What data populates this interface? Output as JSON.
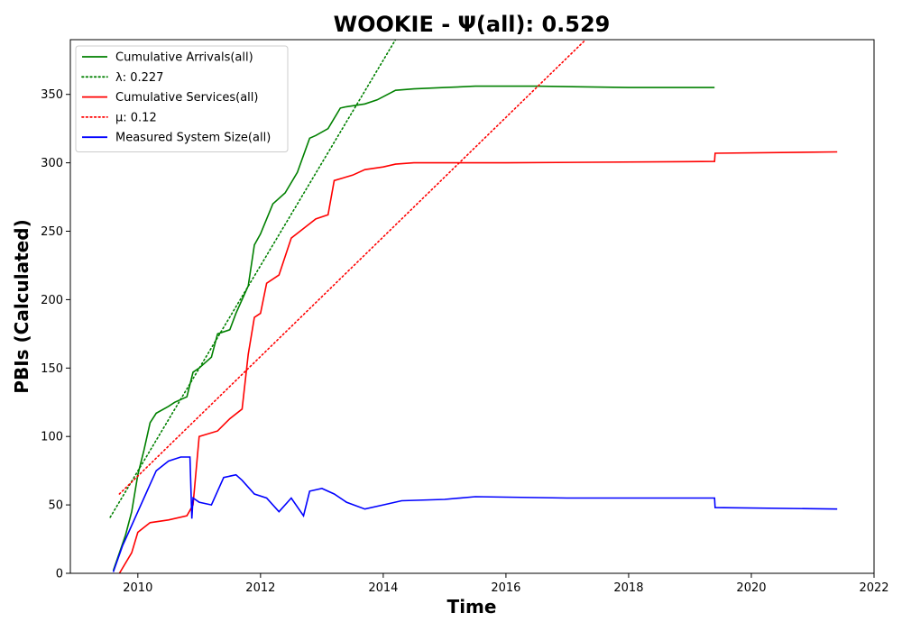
{
  "chart_data": {
    "type": "line",
    "title": "WOOKIE -  Ψ(all): 0.529",
    "xlabel": "Time",
    "ylabel": "PBIs (Calculated)",
    "xlim": [
      2008.9,
      2022.0
    ],
    "ylim": [
      0,
      390
    ],
    "x_ticks": [
      2010,
      2012,
      2014,
      2016,
      2018,
      2020,
      2022
    ],
    "y_ticks": [
      0,
      50,
      100,
      150,
      200,
      250,
      300,
      350
    ],
    "grid": false,
    "legend_position": "top-left",
    "series": [
      {
        "name": "Cumulative Arrivals(all)",
        "color": "#008000",
        "dash": "solid",
        "x": [
          2009.6,
          2009.7,
          2009.8,
          2009.9,
          2010.0,
          2010.1,
          2010.2,
          2010.3,
          2010.5,
          2010.6,
          2010.8,
          2010.9,
          2011.0,
          2011.2,
          2011.3,
          2011.5,
          2011.6,
          2011.8,
          2011.9,
          2012.0,
          2012.2,
          2012.4,
          2012.6,
          2012.8,
          2012.9,
          2013.1,
          2013.3,
          2013.4,
          2013.7,
          2013.9,
          2014.2,
          2014.5,
          2015.0,
          2015.5,
          2016.5,
          2018.0,
          2019.4
        ],
        "y": [
          2,
          15,
          28,
          45,
          72,
          90,
          110,
          117,
          122,
          125,
          129,
          147,
          150,
          158,
          175,
          178,
          190,
          210,
          240,
          248,
          270,
          278,
          293,
          318,
          320,
          325,
          340,
          341,
          343,
          346,
          353,
          354,
          355,
          356,
          356,
          355,
          355
        ]
      },
      {
        "name": "λ: 0.227",
        "color": "#008000",
        "dash": "dotted",
        "x": [
          2009.55,
          2014.2
        ],
        "y": [
          41,
          390
        ]
      },
      {
        "name": "Cumulative Services(all)",
        "color": "#ff0000",
        "dash": "solid",
        "x": [
          2009.7,
          2009.9,
          2010.0,
          2010.2,
          2010.5,
          2010.8,
          2010.9,
          2011.0,
          2011.3,
          2011.5,
          2011.7,
          2011.8,
          2011.9,
          2012.0,
          2012.1,
          2012.3,
          2012.5,
          2012.7,
          2012.9,
          2013.1,
          2013.2,
          2013.5,
          2013.7,
          2014.0,
          2014.2,
          2014.5,
          2016.0,
          2019.4,
          2019.41,
          2021.4
        ],
        "y": [
          0,
          15,
          30,
          37,
          39,
          42,
          50,
          100,
          104,
          113,
          120,
          160,
          187,
          190,
          212,
          218,
          245,
          252,
          259,
          262,
          287,
          291,
          295,
          297,
          299,
          300,
          300,
          301,
          307,
          308
        ]
      },
      {
        "name": "μ: 0.12",
        "color": "#ff0000",
        "dash": "dotted",
        "x": [
          2009.7,
          2017.3
        ],
        "y": [
          58,
          390
        ]
      },
      {
        "name": "Measured System Size(all)",
        "color": "#0000ff",
        "dash": "solid",
        "x": [
          2009.6,
          2009.75,
          2009.85,
          2010.0,
          2010.1,
          2010.2,
          2010.3,
          2010.5,
          2010.7,
          2010.85,
          2010.88,
          2010.9,
          2011.0,
          2011.2,
          2011.4,
          2011.6,
          2011.7,
          2011.9,
          2012.1,
          2012.3,
          2012.5,
          2012.7,
          2012.8,
          2013.0,
          2013.2,
          2013.4,
          2013.7,
          2014.0,
          2014.3,
          2015.0,
          2015.5,
          2017.0,
          2019.4,
          2019.41,
          2021.4
        ],
        "y": [
          1,
          20,
          30,
          45,
          55,
          65,
          75,
          82,
          85,
          85,
          40,
          55,
          52,
          50,
          70,
          72,
          68,
          58,
          55,
          45,
          55,
          42,
          60,
          62,
          58,
          52,
          47,
          50,
          53,
          54,
          56,
          55,
          55,
          48,
          47
        ]
      }
    ]
  }
}
